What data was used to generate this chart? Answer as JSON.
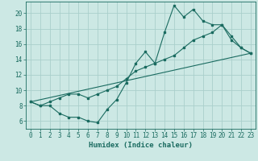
{
  "xlabel": "Humidex (Indice chaleur)",
  "bg_color": "#cce8e4",
  "grid_color": "#aacfcb",
  "line_color": "#1a6b60",
  "xlim": [
    -0.5,
    23.5
  ],
  "ylim": [
    5.0,
    21.5
  ],
  "xticks": [
    0,
    1,
    2,
    3,
    4,
    5,
    6,
    7,
    8,
    9,
    10,
    11,
    12,
    13,
    14,
    15,
    16,
    17,
    18,
    19,
    20,
    21,
    22,
    23
  ],
  "yticks": [
    6,
    8,
    10,
    12,
    14,
    16,
    18,
    20
  ],
  "line1_x": [
    0,
    1,
    2,
    3,
    4,
    5,
    6,
    7,
    8,
    9,
    10,
    11,
    12,
    13,
    14,
    15,
    16,
    17,
    18,
    19,
    20,
    21,
    22,
    23
  ],
  "line1_y": [
    8.5,
    8.0,
    8.0,
    7.0,
    6.5,
    6.5,
    6.0,
    5.8,
    7.5,
    8.8,
    11.0,
    13.5,
    15.0,
    13.5,
    17.5,
    21.0,
    19.5,
    20.5,
    19.0,
    18.5,
    18.5,
    16.5,
    15.5,
    14.8
  ],
  "line2_x": [
    0,
    1,
    2,
    3,
    4,
    5,
    6,
    7,
    8,
    9,
    10,
    11,
    12,
    13,
    14,
    15,
    16,
    17,
    18,
    19,
    20,
    21,
    22,
    23
  ],
  "line2_y": [
    8.5,
    8.0,
    8.5,
    9.0,
    9.5,
    9.5,
    9.0,
    9.5,
    10.0,
    10.5,
    11.5,
    12.5,
    13.0,
    13.5,
    14.0,
    14.5,
    15.5,
    16.5,
    17.0,
    17.5,
    18.5,
    17.0,
    15.5,
    14.8
  ],
  "line3_x": [
    0,
    23
  ],
  "line3_y": [
    8.5,
    14.8
  ],
  "marker_size": 2.0,
  "line_width": 0.8,
  "font_size_ticks": 5.5,
  "font_size_label": 6.5
}
